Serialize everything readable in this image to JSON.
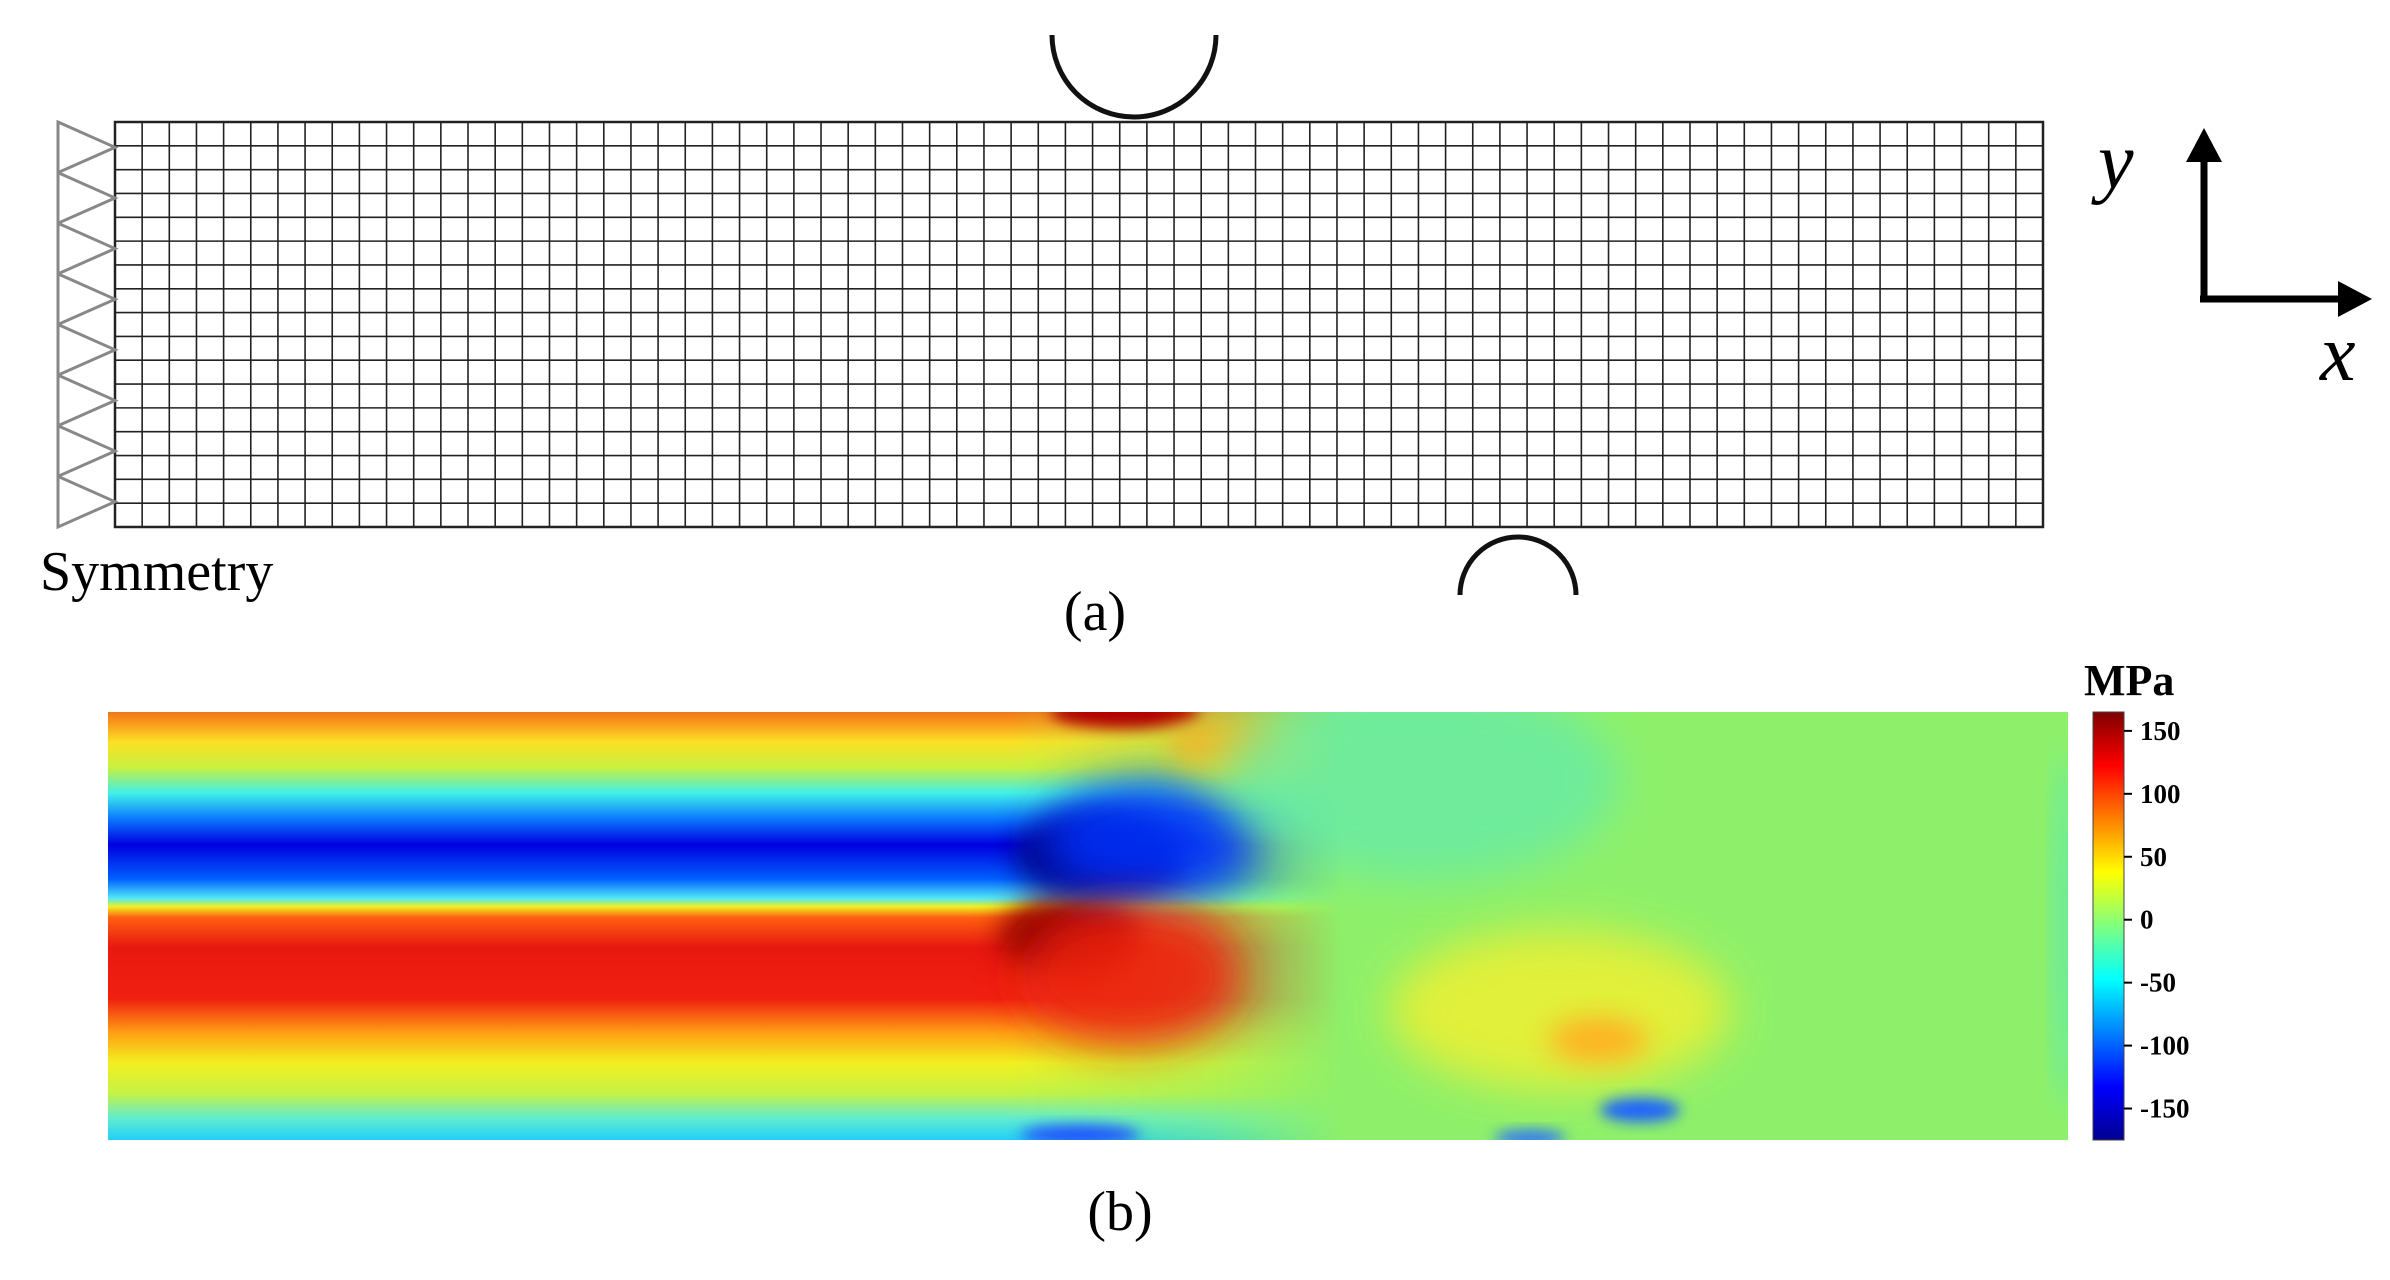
{
  "panel_a": {
    "caption": "(a)",
    "boundary_label": "Symmetry",
    "axes": {
      "x_label": "x",
      "y_label": "y"
    },
    "mesh": {
      "columns": 71,
      "rows": 17
    },
    "colors": {
      "mesh": "#222222",
      "support": "#888888",
      "roller": "#111111"
    }
  },
  "panel_b": {
    "caption": "(b)",
    "colorbar": {
      "unit": "MPa",
      "ticks": [
        "150",
        "100",
        "50",
        "0",
        "-50",
        "-100",
        "-150"
      ],
      "tick_values": [
        150,
        100,
        50,
        0,
        -50,
        -100,
        -150
      ],
      "range": [
        -175,
        165
      ],
      "colormap": "jet"
    }
  }
}
